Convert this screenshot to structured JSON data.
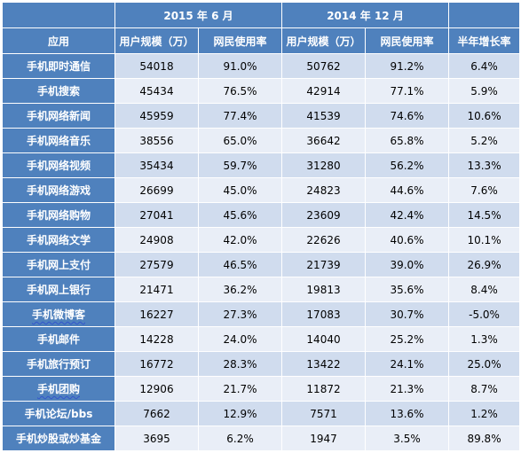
{
  "header": {
    "group_2015": "2015 年 6 月",
    "group_2014": "2014 年 12 月",
    "col_app": "应用",
    "col_users_2015": "用户规模（万）",
    "col_rate_2015": "网民使用率",
    "col_users_2014": "用户规模（万）",
    "col_rate_2014": "网民使用率",
    "col_growth": "半年增长率"
  },
  "rows": [
    {
      "app": "手机即时通信",
      "users_2015": "54018",
      "rate_2015": "91.0%",
      "users_2014": "50762",
      "rate_2014": "91.2%",
      "growth": "6.4%"
    },
    {
      "app": "手机搜索",
      "users_2015": "45434",
      "rate_2015": "76.5%",
      "users_2014": "42914",
      "rate_2014": "77.1%",
      "growth": "5.9%"
    },
    {
      "app": "手机网络新闻",
      "users_2015": "45959",
      "rate_2015": "77.4%",
      "users_2014": "41539",
      "rate_2014": "74.6%",
      "growth": "10.6%"
    },
    {
      "app": "手机网络音乐",
      "users_2015": "38556",
      "rate_2015": "65.0%",
      "users_2014": "36642",
      "rate_2014": "65.8%",
      "growth": "5.2%"
    },
    {
      "app": "手机网络视频",
      "users_2015": "35434",
      "rate_2015": "59.7%",
      "users_2014": "31280",
      "rate_2014": "56.2%",
      "growth": "13.3%"
    },
    {
      "app": "手机网络游戏",
      "users_2015": "26699",
      "rate_2015": "45.0%",
      "users_2014": "24823",
      "rate_2014": "44.6%",
      "growth": "7.6%"
    },
    {
      "app": "手机网络购物",
      "users_2015": "27041",
      "rate_2015": "45.6%",
      "users_2014": "23609",
      "rate_2014": "42.4%",
      "growth": "14.5%"
    },
    {
      "app": "手机网络文学",
      "users_2015": "24908",
      "rate_2015": "42.0%",
      "users_2014": "22626",
      "rate_2014": "40.6%",
      "growth": "10.1%"
    },
    {
      "app": "手机网上支付",
      "users_2015": "27579",
      "rate_2015": "46.5%",
      "users_2014": "21739",
      "rate_2014": "39.0%",
      "growth": "26.9%"
    },
    {
      "app": "手机网上银行",
      "users_2015": "21471",
      "rate_2015": "36.2%",
      "users_2014": "19813",
      "rate_2014": "35.6%",
      "growth": "8.4%"
    },
    {
      "app": "手机微博客",
      "users_2015": "16227",
      "rate_2015": "27.3%",
      "users_2014": "17083",
      "rate_2014": "30.7%",
      "growth": "-5.0%"
    },
    {
      "app": "手机邮件",
      "users_2015": "14228",
      "rate_2015": "24.0%",
      "users_2014": "14040",
      "rate_2014": "25.2%",
      "growth": "1.3%"
    },
    {
      "app": "手机旅行预订",
      "users_2015": "16772",
      "rate_2015": "28.3%",
      "users_2014": "13422",
      "rate_2014": "24.1%",
      "growth": "25.0%"
    },
    {
      "app": "手机团购",
      "users_2015": "12906",
      "rate_2015": "21.7%",
      "users_2014": "11872",
      "rate_2014": "21.3%",
      "growth": "8.7%"
    },
    {
      "app": "手机论坛/bbs",
      "users_2015": "7662",
      "rate_2015": "12.9%",
      "users_2014": "7571",
      "rate_2014": "13.6%",
      "growth": "1.2%"
    },
    {
      "app": "手机炒股或炒基金",
      "users_2015": "3695",
      "rate_2015": "6.2%",
      "users_2014": "1947",
      "rate_2014": "3.5%",
      "growth": "89.8%"
    }
  ]
}
